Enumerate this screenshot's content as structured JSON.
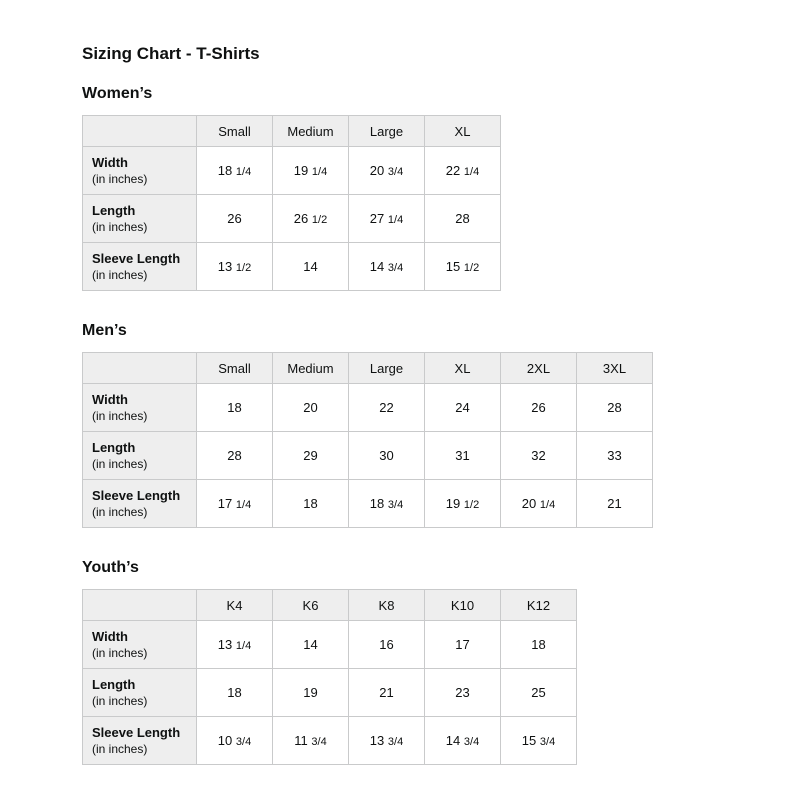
{
  "page_title": "Sizing Chart - T-Shirts",
  "colors": {
    "header_bg": "#eeeeee",
    "border": "#c9cacb",
    "text": "#0f1111",
    "background": "#ffffff"
  },
  "tables": [
    {
      "section": "Women’s",
      "columns": [
        "Small",
        "Medium",
        "Large",
        "XL"
      ],
      "rows": [
        {
          "label": "Width",
          "sublabel": "(in inches)",
          "values": [
            "18 1/4",
            "19 1/4",
            "20 3/4",
            "22 1/4"
          ]
        },
        {
          "label": "Length",
          "sublabel": "(in inches)",
          "values": [
            "26",
            "26 1/2",
            "27 1/4",
            "28"
          ]
        },
        {
          "label": "Sleeve Length",
          "sublabel": "(in inches)",
          "values": [
            "13 1/2",
            "14",
            "14 3/4",
            "15 1/2"
          ]
        }
      ]
    },
    {
      "section": "Men’s",
      "columns": [
        "Small",
        "Medium",
        "Large",
        "XL",
        "2XL",
        "3XL"
      ],
      "rows": [
        {
          "label": "Width",
          "sublabel": "(in inches)",
          "values": [
            "18",
            "20",
            "22",
            "24",
            "26",
            "28"
          ]
        },
        {
          "label": "Length",
          "sublabel": "(in inches)",
          "values": [
            "28",
            "29",
            "30",
            "31",
            "32",
            "33"
          ]
        },
        {
          "label": "Sleeve Length",
          "sublabel": "(in inches)",
          "values": [
            "17 1/4",
            "18",
            "18 3/4",
            "19 1/2",
            "20 1/4",
            "21"
          ]
        }
      ]
    },
    {
      "section": "Youth’s",
      "columns": [
        "K4",
        "K6",
        "K8",
        "K10",
        "K12"
      ],
      "rows": [
        {
          "label": "Width",
          "sublabel": "(in inches)",
          "values": [
            "13 1/4",
            "14",
            "16",
            "17",
            "18"
          ]
        },
        {
          "label": "Length",
          "sublabel": "(in inches)",
          "values": [
            "18",
            "19",
            "21",
            "23",
            "25"
          ]
        },
        {
          "label": "Sleeve Length",
          "sublabel": "(in inches)",
          "values": [
            "10 3/4",
            "11 3/4",
            "13 3/4",
            "14 3/4",
            "15 3/4"
          ]
        }
      ]
    }
  ]
}
